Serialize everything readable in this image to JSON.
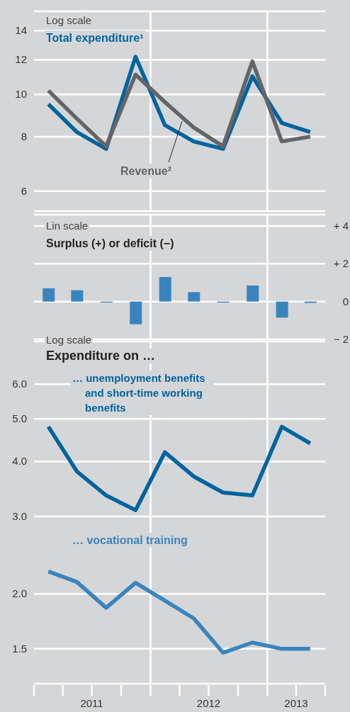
{
  "chart_data": [
    {
      "type": "line",
      "annotations": [
        "Log scale"
      ],
      "x": [
        "2011-02-15",
        "2011-05-15",
        "2011-08-15",
        "2011-11-15",
        "2012-02-15",
        "2012-05-15",
        "2012-08-15",
        "2012-11-15",
        "2013-02-15",
        "2013-05-15"
      ],
      "log": true,
      "ylim": [
        5.4,
        15.5
      ],
      "yticks": [
        6,
        8,
        10,
        12,
        14
      ],
      "xlim": [
        "2011-01-01",
        "2013-07-01"
      ],
      "grid": "y",
      "tick_labels": "y",
      "ref_lines": [
        {
          "axis": "x",
          "value": "2012-01-01",
          "color": "#ffffff"
        },
        {
          "axis": "x",
          "value": "2013-01-01",
          "color": "#ffffff"
        }
      ],
      "series": [
        {
          "name": "Total expenditure¹",
          "color": "#0064a0",
          "values": [
            9.5,
            8.2,
            7.5,
            12.2,
            8.5,
            7.8,
            7.5,
            11.0,
            8.6,
            8.2
          ]
        },
        {
          "name": "Revenue²",
          "color": "#646567",
          "values": [
            10.2,
            8.8,
            7.6,
            11.1,
            9.6,
            8.4,
            7.6,
            11.9,
            7.8,
            8.0
          ]
        }
      ]
    },
    {
      "type": "bar",
      "title": "Surplus (+) or deficit (−)",
      "annotations": [
        "Lin scale"
      ],
      "x": [
        "2011-02-15",
        "2011-05-15",
        "2011-08-15",
        "2011-11-15",
        "2012-02-15",
        "2012-05-15",
        "2012-08-15",
        "2012-11-15",
        "2013-02-15",
        "2013-05-15"
      ],
      "values": [
        0.7,
        0.6,
        -0.05,
        -1.2,
        1.3,
        0.5,
        -0.05,
        0.85,
        -0.85,
        -0.07
      ],
      "color": "#3a84bd",
      "ylim": [
        -2,
        4.6
      ],
      "yticks": [
        {
          "value": 4,
          "label": "+ 4"
        },
        {
          "value": 2,
          "label": "+ 2"
        },
        0,
        {
          "value": -2,
          "label": "− 2"
        }
      ],
      "xlim": [
        "2011-01-01",
        "2013-07-01"
      ],
      "grid": "y",
      "tick_labels": "y",
      "ref_lines": [
        {
          "axis": "x",
          "value": "2012-01-01",
          "color": "#ffffff"
        },
        {
          "axis": "x",
          "value": "2013-01-01",
          "color": "#ffffff"
        }
      ]
    },
    {
      "type": "line",
      "title": "Expenditure on …",
      "annotations": [
        "Log scale"
      ],
      "x": [
        "2011-02-15",
        "2011-05-15",
        "2011-08-15",
        "2011-11-15",
        "2012-02-15",
        "2012-05-15",
        "2012-08-15",
        "2012-11-15",
        "2013-02-15",
        "2013-05-15"
      ],
      "log": true,
      "ylim": [
        1.25,
        7.5
      ],
      "yticks": [
        1.5,
        {
          "value": 2,
          "label": "2.0"
        },
        {
          "value": 3,
          "label": "3.0"
        },
        {
          "value": 4,
          "label": "4.0"
        },
        {
          "value": 5,
          "label": "5.0"
        },
        {
          "value": 6,
          "label": "6.0"
        }
      ],
      "xlim": [
        "2011-01-01",
        "2013-07-01"
      ],
      "xticks": [
        {
          "value": "2011-01-01",
          "label": null
        },
        {
          "value": "2011-04-01",
          "label": null
        },
        {
          "value": "2011-07-01",
          "label": null
        },
        {
          "value": "2011-10-01",
          "label": null
        },
        {
          "value": "2012-01-01",
          "label": null
        },
        {
          "value": "2012-04-01",
          "label": null
        },
        {
          "value": "2012-07-01",
          "label": null
        },
        {
          "value": "2012-10-01",
          "label": null
        },
        {
          "value": "2013-01-01",
          "label": null
        },
        {
          "value": "2013-04-01",
          "label": null
        },
        {
          "value": "2013-07-01",
          "label": null
        },
        {
          "value": "2011-07-01",
          "label": "2011"
        },
        {
          "value": "2012-07-01",
          "label": "2012"
        },
        {
          "value": "2013-04-01",
          "label": "2013"
        }
      ],
      "grid": "y",
      "ref_lines": [
        {
          "axis": "x",
          "value": "2012-01-01",
          "color": "#ffffff"
        },
        {
          "axis": "x",
          "value": "2013-01-01",
          "color": "#ffffff"
        }
      ],
      "series": [
        {
          "name": "… unemployment benefits and short-time working benefits",
          "color": "#0064a0",
          "values": [
            4.8,
            3.8,
            3.35,
            3.1,
            4.2,
            3.7,
            3.4,
            3.35,
            4.8,
            4.4
          ]
        },
        {
          "name": "… vocational training",
          "color": "#3a84bd",
          "values": [
            2.25,
            2.13,
            1.86,
            2.12,
            1.93,
            1.76,
            1.47,
            1.55,
            1.5,
            1.5
          ]
        }
      ]
    }
  ]
}
